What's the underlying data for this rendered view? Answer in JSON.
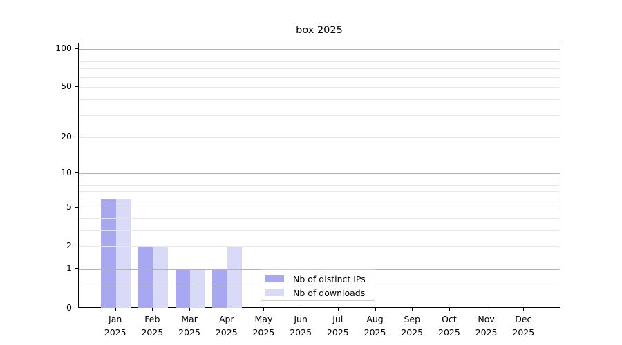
{
  "chart_data": {
    "type": "bar",
    "title": "box 2025",
    "categories": [
      "Jan 2025",
      "Feb 2025",
      "Mar 2025",
      "Apr 2025",
      "May 2025",
      "Jun 2025",
      "Jul 2025",
      "Aug 2025",
      "Sep 2025",
      "Oct 2025",
      "Nov 2025",
      "Dec 2025"
    ],
    "series": [
      {
        "key": "distinct-ips",
        "name": "Nb of distinct IPs",
        "color": "#a8a8f2",
        "values": [
          6,
          2,
          1,
          1,
          0,
          0,
          0,
          0,
          0,
          0,
          0,
          0
        ]
      },
      {
        "key": "downloads",
        "name": "Nb of downloads",
        "color": "#d9d9f8",
        "values": [
          6,
          2,
          1,
          2,
          0,
          0,
          0,
          0,
          0,
          0,
          0,
          0
        ]
      }
    ],
    "xlabel": "",
    "ylabel": "",
    "yscale": "log1p",
    "ylim": [
      0,
      110
    ],
    "y_tick_labels": [
      0,
      1,
      2,
      5,
      10,
      20,
      50,
      100
    ],
    "y_grid_major": [
      1,
      10,
      100
    ],
    "y_grid_minor": [
      0.5,
      2,
      3,
      4,
      5,
      6,
      7,
      8,
      9,
      20,
      30,
      40,
      50,
      60,
      70,
      80,
      90
    ],
    "grid": true,
    "legend_position": "lower center"
  },
  "colors": {
    "grid_major": "#b3b3b3",
    "grid_minor": "#e8e8e8",
    "axis": "#000000",
    "legend_border": "#cccccc"
  }
}
